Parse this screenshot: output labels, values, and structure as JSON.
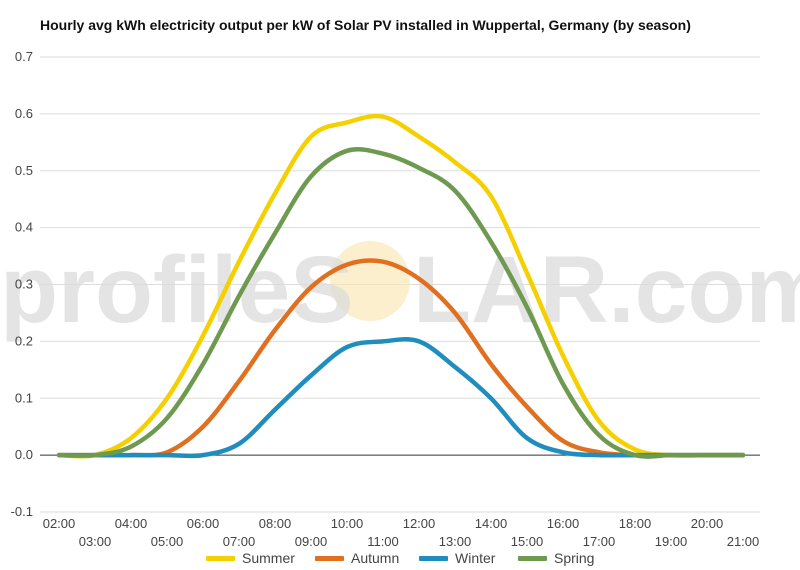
{
  "title": "Hourly avg kWh electricity output per kW of Solar PV installed in Wuppertal, Germany (by season)",
  "watermark": {
    "prefix": "profileS",
    "suffix": "LAR.com"
  },
  "chart_data": {
    "type": "line",
    "title": "Hourly avg kWh electricity output per kW of Solar PV installed in Wuppertal, Germany (by season)",
    "xlabel": "",
    "ylabel": "",
    "ylim": [
      -0.1,
      0.7
    ],
    "y_ticks": [
      "-0.1",
      "0.0",
      "0.1",
      "0.2",
      "0.3",
      "0.4",
      "0.5",
      "0.6",
      "0.7"
    ],
    "x_ticks_upper": [
      "02:00",
      "04:00",
      "06:00",
      "08:00",
      "10:00",
      "12:00",
      "14:00",
      "16:00",
      "18:00",
      "20:00"
    ],
    "x_ticks_lower": [
      "03:00",
      "05:00",
      "07:00",
      "09:00",
      "11:00",
      "13:00",
      "15:00",
      "17:00",
      "19:00",
      "21:00"
    ],
    "grid": true,
    "legend_position": "bottom",
    "x": [
      "02:00",
      "03:00",
      "04:00",
      "05:00",
      "06:00",
      "07:00",
      "08:00",
      "09:00",
      "10:00",
      "11:00",
      "12:00",
      "13:00",
      "14:00",
      "15:00",
      "16:00",
      "17:00",
      "18:00",
      "19:00",
      "20:00",
      "21:00"
    ],
    "series": [
      {
        "name": "Summer",
        "color": "#f5d000",
        "values": [
          0.0,
          0.0,
          0.03,
          0.1,
          0.21,
          0.34,
          0.46,
          0.56,
          0.585,
          0.595,
          0.56,
          0.515,
          0.455,
          0.32,
          0.175,
          0.06,
          0.01,
          0.0,
          0.0,
          0.0
        ]
      },
      {
        "name": "Autumn",
        "color": "#e06f1f",
        "values": [
          0.0,
          0.0,
          0.0,
          0.005,
          0.05,
          0.13,
          0.22,
          0.295,
          0.335,
          0.34,
          0.31,
          0.25,
          0.16,
          0.085,
          0.025,
          0.005,
          0.0,
          0.0,
          0.0,
          0.0
        ]
      },
      {
        "name": "Winter",
        "color": "#1f8ebf",
        "values": [
          0.0,
          0.0,
          0.0,
          0.0,
          0.0,
          0.02,
          0.08,
          0.14,
          0.19,
          0.2,
          0.2,
          0.155,
          0.1,
          0.03,
          0.005,
          0.0,
          0.0,
          0.0,
          0.0,
          0.0
        ]
      },
      {
        "name": "Spring",
        "color": "#6e9a4f",
        "values": [
          0.0,
          0.0,
          0.015,
          0.065,
          0.16,
          0.28,
          0.39,
          0.49,
          0.535,
          0.53,
          0.505,
          0.465,
          0.375,
          0.26,
          0.125,
          0.035,
          0.0,
          0.0,
          0.0,
          0.0
        ]
      }
    ]
  }
}
